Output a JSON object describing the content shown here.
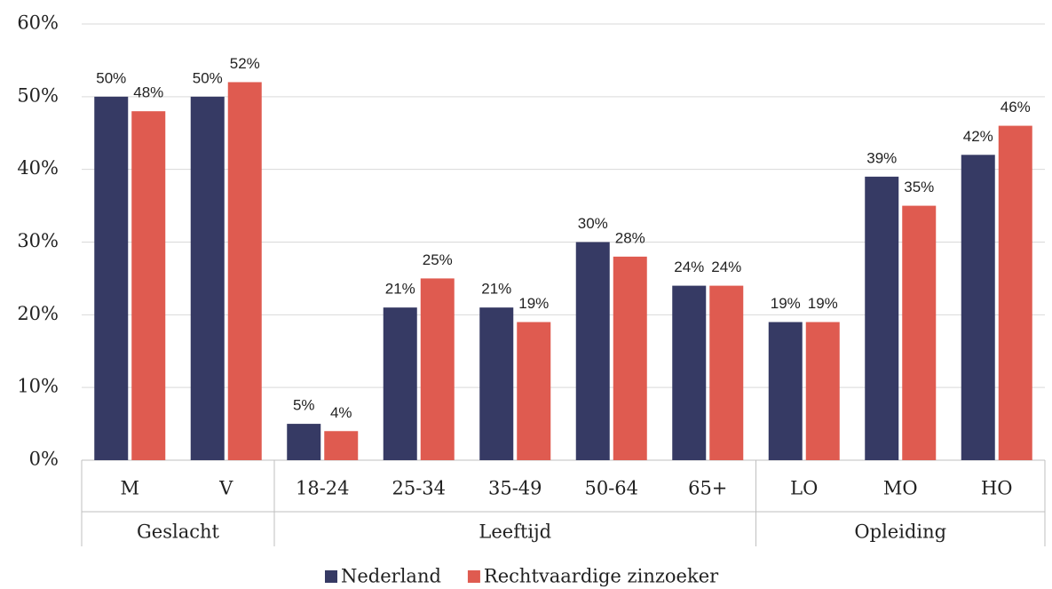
{
  "chart_data": {
    "type": "bar",
    "categories": [
      "M",
      "V",
      "18-24",
      "25-34",
      "35-49",
      "50-64",
      "65+",
      "LO",
      "MO",
      "HO"
    ],
    "category_groups": [
      {
        "name": "Geslacht",
        "size": 2
      },
      {
        "name": "Leeftijd",
        "size": 5
      },
      {
        "name": "Opleiding",
        "size": 3
      }
    ],
    "series": [
      {
        "name": "Nederland",
        "color": "#363a64",
        "values": [
          50,
          50,
          5,
          21,
          21,
          30,
          24,
          19,
          39,
          42
        ],
        "value_labels": [
          "50%",
          "50%",
          "5%",
          "21%",
          "21%",
          "30%",
          "24%",
          "19%",
          "39%",
          "42%"
        ]
      },
      {
        "name": "Rechtvaardige zinzoeker",
        "color": "#df5b50",
        "values": [
          48,
          52,
          4,
          25,
          19,
          28,
          24,
          19,
          35,
          46
        ],
        "value_labels": [
          "48%",
          "52%",
          "4%",
          "25%",
          "19%",
          "28%",
          "24%",
          "19%",
          "35%",
          "46%"
        ]
      }
    ],
    "ylim": [
      0,
      60
    ],
    "yticks": [
      {
        "value": 0,
        "label": "0%"
      },
      {
        "value": 10,
        "label": "10%"
      },
      {
        "value": 20,
        "label": "20%"
      },
      {
        "value": 30,
        "label": "30%"
      },
      {
        "value": 40,
        "label": "40%"
      },
      {
        "value": 50,
        "label": "50%"
      },
      {
        "value": 60,
        "label": "60%"
      }
    ],
    "grid": true,
    "legend": "bottom"
  }
}
